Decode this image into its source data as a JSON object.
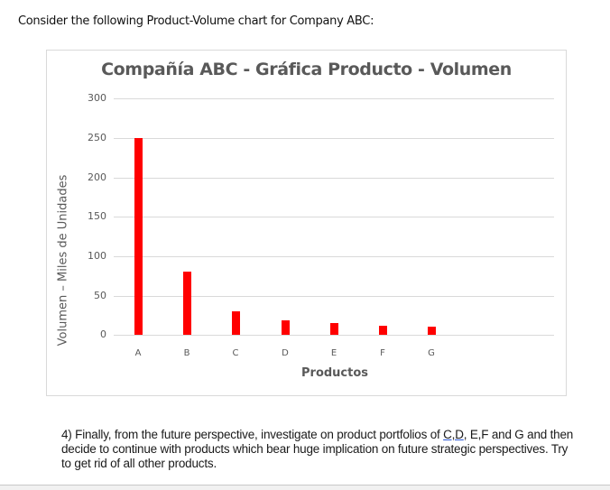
{
  "document": {
    "intro_text": "Consider the following Product-Volume chart for Company ABC:",
    "question": {
      "part1": "4) Finally, from the future perspective, investigate on product portfolios of ",
      "underlined": "C,D",
      "part2": ", E,F and G and then decide to continue with products which bear huge implication on future strategic perspectives. Try to get rid of all other products."
    }
  },
  "chart_data": {
    "type": "bar",
    "title": "Compañía ABC - Gráfica Producto - Volumen",
    "xlabel": "Productos",
    "ylabel": "Volumen – Miles de Unidades",
    "categories": [
      "A",
      "B",
      "C",
      "D",
      "E",
      "F",
      "G"
    ],
    "values": [
      250,
      80,
      30,
      18,
      15,
      12,
      10
    ],
    "ylim": [
      0,
      300
    ],
    "yticks": [
      "300",
      "250",
      "200",
      "150",
      "100",
      "50",
      "0"
    ],
    "grid": true,
    "legend": "none",
    "bar_color": "#ff0000"
  }
}
